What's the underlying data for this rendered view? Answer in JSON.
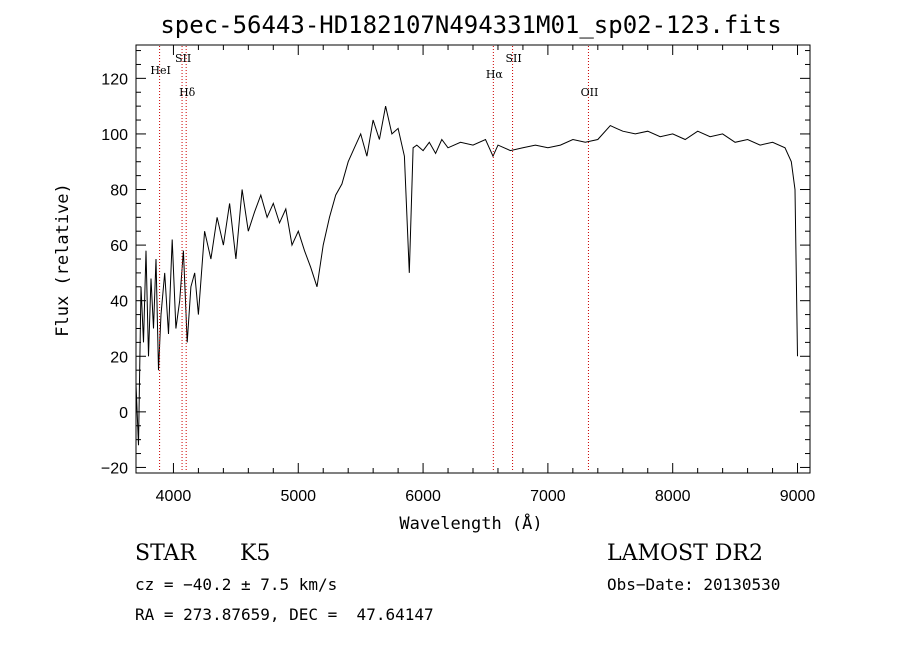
{
  "chart_data": {
    "type": "line",
    "title": "spec-56443-HD182107N494331M01_sp02-123.fits",
    "xlabel": "Wavelength (Å)",
    "ylabel": "Flux (relative)",
    "xlim": [
      3700,
      9100
    ],
    "ylim": [
      -22,
      132
    ],
    "xticks": [
      4000,
      5000,
      6000,
      7000,
      8000,
      9000
    ],
    "yticks": [
      -20,
      0,
      20,
      40,
      60,
      80,
      100,
      120
    ],
    "grid": false,
    "line_color": "#000000",
    "marker_color": "#cc0000",
    "lines": [
      {
        "label": "HeI",
        "x": 3889
      },
      {
        "label": "SII",
        "x": 4069
      },
      {
        "label": "Hδ",
        "x": 4102
      },
      {
        "label": "Hα",
        "x": 6563
      },
      {
        "label": "SII",
        "x": 6717
      },
      {
        "label": "OII",
        "x": 7325
      }
    ],
    "series": [
      {
        "x": [
          3700,
          3720,
          3740,
          3760,
          3780,
          3800,
          3820,
          3840,
          3860,
          3880,
          3900,
          3930,
          3960,
          3990,
          4020,
          4050,
          4080,
          4110,
          4140,
          4170,
          4200,
          4250,
          4300,
          4350,
          4400,
          4450,
          4500,
          4550,
          4600,
          4650,
          4700,
          4750,
          4800,
          4850,
          4900,
          4950,
          5000,
          5050,
          5100,
          5150,
          5200,
          5250,
          5300,
          5350,
          5400,
          5450,
          5500,
          5550,
          5600,
          5650,
          5700,
          5750,
          5800,
          5850,
          5890,
          5920,
          5950,
          6000,
          6050,
          6100,
          6150,
          6200,
          6300,
          6400,
          6500,
          6560,
          6600,
          6700,
          6800,
          6900,
          7000,
          7100,
          7200,
          7300,
          7400,
          7500,
          7550,
          7600,
          7700,
          7800,
          7900,
          8000,
          8100,
          8200,
          8300,
          8400,
          8500,
          8600,
          8700,
          8800,
          8900,
          8950,
          8980,
          9000
        ],
        "y": [
          10,
          -12,
          45,
          25,
          58,
          20,
          48,
          30,
          55,
          15,
          35,
          50,
          28,
          62,
          30,
          40,
          58,
          25,
          45,
          50,
          35,
          65,
          55,
          70,
          60,
          75,
          55,
          80,
          65,
          72,
          78,
          70,
          75,
          68,
          73,
          60,
          65,
          58,
          52,
          45,
          60,
          70,
          78,
          82,
          90,
          95,
          100,
          92,
          105,
          98,
          110,
          100,
          102,
          92,
          50,
          95,
          96,
          94,
          97,
          93,
          98,
          95,
          97,
          96,
          98,
          92,
          96,
          94,
          95,
          96,
          95,
          96,
          98,
          97,
          98,
          103,
          102,
          101,
          100,
          101,
          99,
          100,
          98,
          101,
          99,
          100,
          97,
          98,
          96,
          97,
          95,
          90,
          80,
          20
        ]
      }
    ]
  },
  "info": {
    "object_class": "STAR",
    "subclass": "K5",
    "survey": "LAMOST DR2",
    "cz": "cz = −40.2 ± 7.5 km/s",
    "obs_date": "Obs−Date: 20130530",
    "coords": "RA = 273.87659, DEC =  47.64147"
  }
}
